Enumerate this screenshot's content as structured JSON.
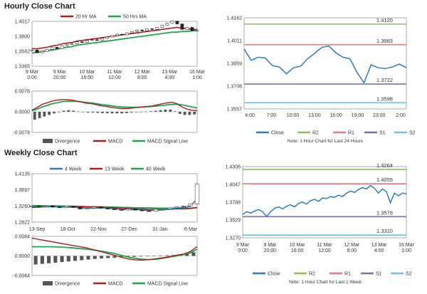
{
  "hourly_title": "Hourly Close Chart",
  "weekly_title": "Weekly Close Chart",
  "chart_data": [
    {
      "id": "hourly_price",
      "type": "candlestick-line",
      "legend": [
        "20 Hr MA",
        "50 Hrs MA"
      ],
      "colors": {
        "ma20": "#b01c1c",
        "ma50": "#1fa84a",
        "candle": "#222222"
      },
      "y_ticks": [
        "1.4017",
        "1.3800",
        "1.3582",
        "1.3365"
      ],
      "ylim": [
        1.3365,
        1.4017
      ],
      "x_ticks": [
        [
          "9 Mar",
          "0:00"
        ],
        [
          "9 Mar",
          "20:00"
        ],
        [
          "10 Mar",
          "16:00"
        ],
        [
          "11 Mar",
          "12:00"
        ],
        [
          "12 Mar",
          "8:00"
        ],
        [
          "13 Mar",
          "4:00"
        ],
        [
          "16 Mar",
          "1:00"
        ]
      ],
      "close": [
        1.36,
        1.356,
        1.358,
        1.361,
        1.364,
        1.362,
        1.366,
        1.368,
        1.369,
        1.372,
        1.371,
        1.374,
        1.375,
        1.374,
        1.377,
        1.379,
        1.381,
        1.383,
        1.382,
        1.385,
        1.387,
        1.389,
        1.388,
        1.391,
        1.39,
        1.393,
        1.396,
        1.399,
        1.402,
        1.398,
        1.39,
        1.393,
        1.388,
        1.389
      ],
      "ma20": [
        1.362,
        1.362,
        1.363,
        1.364,
        1.366,
        1.367,
        1.369,
        1.37,
        1.371,
        1.373,
        1.374,
        1.375,
        1.376,
        1.377,
        1.378,
        1.379,
        1.38,
        1.381,
        1.382,
        1.383,
        1.384,
        1.385,
        1.386,
        1.387,
        1.388,
        1.389,
        1.39,
        1.391,
        1.392,
        1.393,
        1.392,
        1.391,
        1.39,
        1.39
      ],
      "ma50": [
        1.3555,
        1.357,
        1.358,
        1.359,
        1.36,
        1.361,
        1.363,
        1.364,
        1.365,
        1.367,
        1.368,
        1.369,
        1.37,
        1.371,
        1.372,
        1.373,
        1.374,
        1.375,
        1.376,
        1.377,
        1.378,
        1.379,
        1.38,
        1.381,
        1.382,
        1.383,
        1.384,
        1.385,
        1.386,
        1.386,
        1.387,
        1.387,
        1.388,
        1.388
      ]
    },
    {
      "id": "hourly_macd",
      "type": "macd",
      "legend": [
        "Divergence",
        "MACD",
        "MACD Signal Line"
      ],
      "colors": {
        "divergence": "#555555",
        "macd": "#b01c1c",
        "signal": "#1fa84a"
      },
      "y_ticks": [
        "0.0078",
        "0.0000",
        "-0.0078"
      ],
      "ylim": [
        -0.0078,
        0.0078
      ],
      "macd": [
        0.0006,
        0.0016,
        0.0028,
        0.0034,
        0.004,
        0.0044,
        0.0046,
        0.0046,
        0.0044,
        0.004,
        0.0036,
        0.0032,
        0.003,
        0.0026,
        0.0022,
        0.002,
        0.0016,
        0.0014,
        0.0012,
        0.0012,
        0.0014,
        0.0016,
        0.0018,
        0.002,
        0.0022,
        0.0026,
        0.003,
        0.0034,
        0.0036,
        0.003,
        0.0018,
        0.001,
        0.0006,
        0.0004
      ],
      "signal": [
        0.0004,
        0.001,
        0.0018,
        0.0024,
        0.003,
        0.0034,
        0.0038,
        0.004,
        0.004,
        0.0039,
        0.0037,
        0.0035,
        0.0033,
        0.003,
        0.0027,
        0.0025,
        0.0022,
        0.002,
        0.0018,
        0.0017,
        0.0017,
        0.0017,
        0.0018,
        0.0019,
        0.002,
        0.0022,
        0.0024,
        0.0026,
        0.0028,
        0.0028,
        0.0026,
        0.0022,
        0.0018,
        0.0014
      ],
      "divergence": [
        -0.003,
        -0.0024,
        -0.0018,
        -0.0012,
        -0.0006,
        -0.0002,
        0.0004,
        0.0006,
        0.0004,
        0.0001,
        -0.0001,
        -0.0003,
        -0.0003,
        -0.0004,
        -0.0005,
        -0.0005,
        -0.0006,
        -0.0006,
        -0.0006,
        -0.0005,
        -0.0003,
        -0.0001,
        0.0,
        0.0001,
        0.0002,
        0.0004,
        0.0006,
        0.0008,
        0.0008,
        0.0002,
        -0.0008,
        -0.0012,
        -0.0012,
        -0.001
      ]
    },
    {
      "id": "hourly_pivot",
      "type": "line",
      "legend": [
        "Close",
        "R2",
        "R1",
        "S1",
        "S2"
      ],
      "note": "Note: 1 Hour Chart for Last 24 Hours",
      "colors": {
        "close": "#2a7fbf",
        "r2": "#8fc255",
        "r1": "#e47a7a",
        "s1": "#7a6fa8",
        "s2": "#6cc6d6"
      },
      "y_ticks": [
        "1.4162",
        "1.4011",
        "1.3859",
        "1.3708",
        "1.3557"
      ],
      "ylim": [
        1.3557,
        1.4162
      ],
      "x_ticks": [
        "4:00",
        "7:00",
        "10:00",
        "13:00",
        "16:00",
        "19:00",
        "23:00",
        "2:00"
      ],
      "levels": {
        "R2": 1.412,
        "R1": 1.3983,
        "S1": 1.3722,
        "S2": 1.3598
      },
      "level_labels": {
        "R2": "1.4120",
        "R1": "1.3983",
        "S1": "1.3722",
        "S2": "1.3598"
      },
      "close": [
        1.3955,
        1.388,
        1.39,
        1.3895,
        1.3845,
        1.3835,
        1.379,
        1.383,
        1.384,
        1.389,
        1.3925,
        1.3965,
        1.3975,
        1.393,
        1.39,
        1.389,
        1.38,
        1.373,
        1.385,
        1.383,
        1.3825,
        1.3835,
        1.3855,
        1.383
      ]
    },
    {
      "id": "weekly_price",
      "type": "candlestick-line",
      "legend": [
        "4 Week",
        "13 Week",
        "40 Week"
      ],
      "colors": {
        "ma4": "#2a7fbf",
        "ma13": "#b01c1c",
        "ma40": "#1fa84a",
        "candle": "#222222"
      },
      "y_ticks": [
        "1.4135",
        "1.3697",
        "1.3260",
        "1.2822"
      ],
      "ylim": [
        1.2822,
        1.4135
      ],
      "x_ticks": [
        "13-Sep",
        "18-Oct",
        "22-Nov",
        "27-Dec",
        "31-Jan",
        "6-Mar"
      ],
      "close": [
        1.326,
        1.325,
        1.327,
        1.323,
        1.322,
        1.325,
        1.322,
        1.318,
        1.32,
        1.323,
        1.32,
        1.318,
        1.316,
        1.315,
        1.318,
        1.315,
        1.313,
        1.312,
        1.317,
        1.318,
        1.321,
        1.324,
        1.326,
        1.331,
        1.385
      ],
      "ma4": [
        1.324,
        1.325,
        1.325,
        1.324,
        1.324,
        1.323,
        1.323,
        1.321,
        1.32,
        1.32,
        1.321,
        1.32,
        1.318,
        1.317,
        1.316,
        1.316,
        1.315,
        1.314,
        1.314,
        1.315,
        1.317,
        1.32,
        1.322,
        1.325,
        1.345
      ],
      "ma13": [
        1.322,
        1.323,
        1.324,
        1.324,
        1.325,
        1.325,
        1.325,
        1.324,
        1.324,
        1.323,
        1.323,
        1.322,
        1.321,
        1.32,
        1.319,
        1.318,
        1.318,
        1.317,
        1.317,
        1.317,
        1.317,
        1.318,
        1.318,
        1.319,
        1.322
      ],
      "ma40": [
        1.327,
        1.327,
        1.326,
        1.326,
        1.326,
        1.325,
        1.325,
        1.325,
        1.324,
        1.324,
        1.324,
        1.323,
        1.323,
        1.322,
        1.322,
        1.321,
        1.321,
        1.321,
        1.32,
        1.32,
        1.32,
        1.32,
        1.32,
        1.32,
        1.321
      ]
    },
    {
      "id": "weekly_macd",
      "type": "macd",
      "legend": [
        "Divergence",
        "MACD",
        "MACD Signal Line"
      ],
      "colors": {
        "divergence": "#555555",
        "macd": "#b01c1c",
        "signal": "#1fa84a"
      },
      "y_ticks": [
        "0.0064",
        "0.0000",
        "-0.0064"
      ],
      "ylim": [
        -0.0064,
        0.0064
      ],
      "macd": [
        0.0058,
        0.0054,
        0.005,
        0.0046,
        0.0042,
        0.0038,
        0.0034,
        0.003,
        0.0026,
        0.002,
        0.0014,
        0.0008,
        0.0002,
        -0.0004,
        -0.001,
        -0.0013,
        -0.0014,
        -0.0012,
        -0.0009,
        -0.0006,
        -0.0002,
        0.0002,
        0.0006,
        0.0014,
        0.003
      ],
      "signal": [
        0.003,
        0.003,
        0.003,
        0.003,
        0.0029,
        0.0028,
        0.0026,
        0.0024,
        0.0022,
        0.0019,
        0.0016,
        0.0012,
        0.0008,
        0.0002,
        -0.0004,
        -0.0008,
        -0.0011,
        -0.0012,
        -0.0011,
        -0.0008,
        -0.0004,
        0.0,
        0.0004,
        0.001,
        0.0022
      ],
      "divergence": [
        -0.0028,
        -0.0026,
        -0.0024,
        -0.0022,
        -0.002,
        -0.0018,
        -0.0016,
        -0.0014,
        -0.0012,
        -0.001,
        -0.0008,
        -0.0007,
        -0.0006,
        -0.0005,
        -0.0004,
        -0.0003,
        -0.0002,
        -0.0001,
        0.0,
        0.0001,
        0.0002,
        0.0003,
        0.0005,
        0.0008,
        0.0012
      ]
    },
    {
      "id": "weekly_pivot",
      "type": "line",
      "legend": [
        "Close",
        "R2",
        "R1",
        "S1",
        "S2"
      ],
      "note": "Note: 1 Hour Chart for Last 1 Week",
      "colors": {
        "close": "#2a7fbf",
        "r2": "#8fc255",
        "r1": "#e47a7a",
        "s1": "#7a6fa8",
        "s2": "#6cc6d6"
      },
      "y_ticks": [
        "1.4306",
        "1.4047",
        "1.3788",
        "1.3529",
        "1.3270"
      ],
      "ylim": [
        1.327,
        1.4306
      ],
      "x_ticks": [
        [
          "9 Mar",
          "0:00"
        ],
        [
          "9 Mar",
          "20:00"
        ],
        [
          "10 Mar",
          "16:00"
        ],
        [
          "11 Mar",
          "12:00"
        ],
        [
          "12 Mar",
          "8:00"
        ],
        [
          "13 Mar",
          "4:00"
        ],
        [
          "16 Mar",
          "1:00"
        ]
      ],
      "levels": {
        "R2": 1.4264,
        "R1": 1.4055,
        "S1": 1.3578,
        "S2": 1.331
      },
      "level_labels": {
        "R2": "1.4264",
        "R1": "1.4055",
        "S1": "1.3578",
        "S2": "1.3310"
      },
      "close": [
        1.361,
        1.365,
        1.363,
        1.366,
        1.368,
        1.365,
        1.358,
        1.365,
        1.37,
        1.372,
        1.369,
        1.373,
        1.375,
        1.372,
        1.377,
        1.379,
        1.376,
        1.381,
        1.383,
        1.38,
        1.385,
        1.384,
        1.387,
        1.386,
        1.389,
        1.387,
        1.392,
        1.395,
        1.393,
        1.397,
        1.4,
        1.398,
        1.403,
        1.399,
        1.392,
        1.398,
        1.394,
        1.378,
        1.392,
        1.388,
        1.392,
        1.391
      ]
    }
  ]
}
